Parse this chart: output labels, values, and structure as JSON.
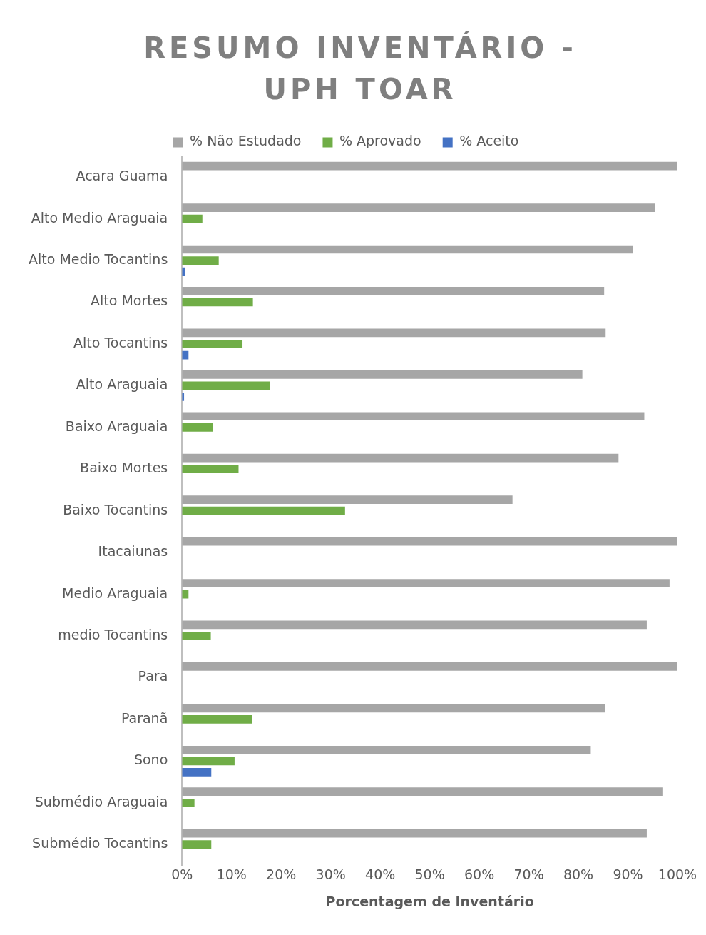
{
  "chart_data": {
    "type": "bar",
    "orientation": "horizontal",
    "title": "RESUMO INVENTÁRIO - UPH TOAR",
    "xlabel": "Porcentagem de Inventário",
    "categories": [
      "Acara Guama",
      "Alto Medio Araguaia",
      "Alto Medio Tocantins",
      "Alto Mortes",
      "Alto Tocantins",
      "Alto Araguaia",
      "Baixo Araguaia",
      "Baixo Mortes",
      "Baixo Tocantins",
      "Itacaiunas",
      "Medio Araguaia",
      "medio Tocantins",
      "Para",
      "Paranã",
      "Sono",
      "Submédio Araguaia",
      "Submédio Tocantins"
    ],
    "series": [
      {
        "name": "% Não Estudado",
        "color": "#a6a6a6",
        "values": [
          100,
          95.5,
          91,
          85.2,
          85.5,
          80.8,
          93.3,
          88.1,
          66.7,
          100,
          98.4,
          93.8,
          100,
          85.4,
          82.5,
          97.1,
          93.8
        ]
      },
      {
        "name": "% Aprovado",
        "color": "#70ad47",
        "values": [
          0,
          4.1,
          7.4,
          14.3,
          12.2,
          17.8,
          6.2,
          11.4,
          32.9,
          0,
          1.3,
          5.8,
          0,
          14.2,
          10.6,
          2.5,
          5.9
        ]
      },
      {
        "name": "% Aceito",
        "color": "#4472c4",
        "values": [
          0,
          0,
          0.6,
          0,
          1.3,
          0.4,
          0,
          0,
          0,
          0,
          0,
          0,
          0,
          0,
          5.9,
          0,
          0
        ]
      }
    ],
    "xlim": [
      0,
      100
    ],
    "xticks": [
      {
        "value": 0,
        "label": "0%"
      },
      {
        "value": 10,
        "label": "10%"
      },
      {
        "value": 20,
        "label": "20%"
      },
      {
        "value": 30,
        "label": "30%"
      },
      {
        "value": 40,
        "label": "40%"
      },
      {
        "value": 50,
        "label": "50%"
      },
      {
        "value": 60,
        "label": "60%"
      },
      {
        "value": 70,
        "label": "70%"
      },
      {
        "value": 80,
        "label": "80%"
      },
      {
        "value": 90,
        "label": "90%"
      },
      {
        "value": 100,
        "label": "100%"
      }
    ],
    "grid": false,
    "legend": "top"
  }
}
